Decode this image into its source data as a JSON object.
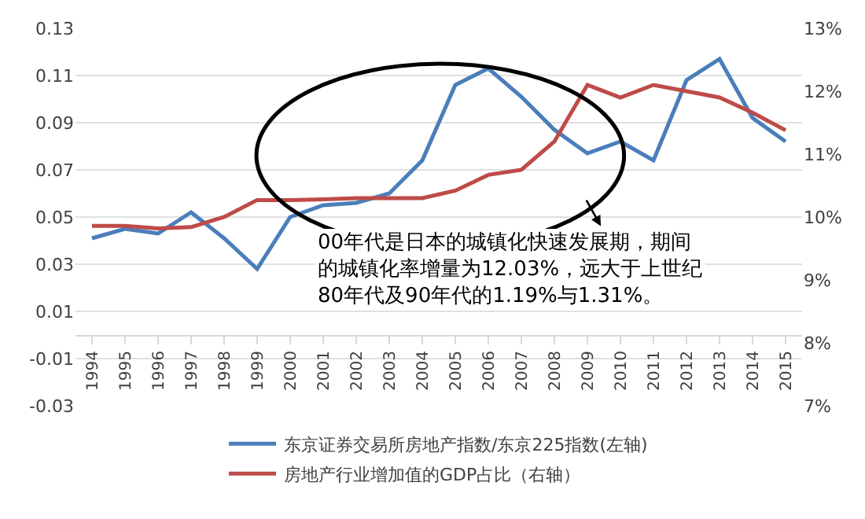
{
  "chart_data": {
    "type": "line",
    "categories": [
      "1994",
      "1995",
      "1996",
      "1997",
      "1998",
      "1999",
      "2000",
      "2001",
      "2002",
      "2003",
      "2004",
      "2005",
      "2006",
      "2007",
      "2008",
      "2009",
      "2010",
      "2011",
      "2012",
      "2013",
      "2014",
      "2015"
    ],
    "series": [
      {
        "name": "东京证券交易所房地产指数/东京225指数(左轴)",
        "color": "#4a7ebb",
        "values": [
          0.041,
          0.045,
          0.043,
          0.052,
          0.041,
          0.028,
          0.05,
          0.055,
          0.056,
          0.06,
          0.074,
          0.106,
          0.113,
          0.101,
          0.087,
          0.077,
          0.082,
          0.074,
          0.108,
          0.117,
          0.092,
          0.082
        ]
      },
      {
        "name": "房地产行业增加值的GDP占比（右轴）",
        "color": "#be4b48",
        "axis": "y2",
        "values": [
          9.86,
          9.86,
          9.82,
          9.84,
          10.0,
          10.27,
          10.27,
          10.28,
          10.3,
          10.3,
          10.3,
          10.42,
          10.67,
          10.75,
          11.2,
          12.1,
          11.9,
          12.1,
          12.0,
          11.9,
          11.66,
          11.38
        ]
      }
    ],
    "ylim": [
      -0.03,
      0.13
    ],
    "yticks": [
      {
        "value": 0.13,
        "label": "0.13"
      },
      {
        "value": 0.11,
        "label": "0.11"
      },
      {
        "value": 0.09,
        "label": "0.09"
      },
      {
        "value": 0.07,
        "label": "0.07"
      },
      {
        "value": 0.05,
        "label": "0.05"
      },
      {
        "value": 0.03,
        "label": "0.03"
      },
      {
        "value": 0.01,
        "label": "0.01"
      },
      {
        "value": -0.01,
        "label": "-0.01"
      },
      {
        "value": -0.03,
        "label": "-0.03"
      }
    ],
    "y2lim": [
      7,
      13
    ],
    "y2ticks": [
      {
        "value": 7,
        "label": "7%"
      },
      {
        "value": 8,
        "label": "8%"
      },
      {
        "value": 9,
        "label": "9%"
      },
      {
        "value": 10,
        "label": "10%"
      },
      {
        "value": 11,
        "label": "11%"
      },
      {
        "value": 12,
        "label": "12%"
      },
      {
        "value": 13,
        "label": "13%"
      }
    ],
    "annotations": [
      "00年代是日本的城镇化快速发展期，期间的城镇化率增量为12.03%，远大于上世纪80年代及90年代的1.19%与1.31%。"
    ],
    "grid": "y",
    "legend": "bottom",
    "marker": "none",
    "line_style": "solid"
  }
}
